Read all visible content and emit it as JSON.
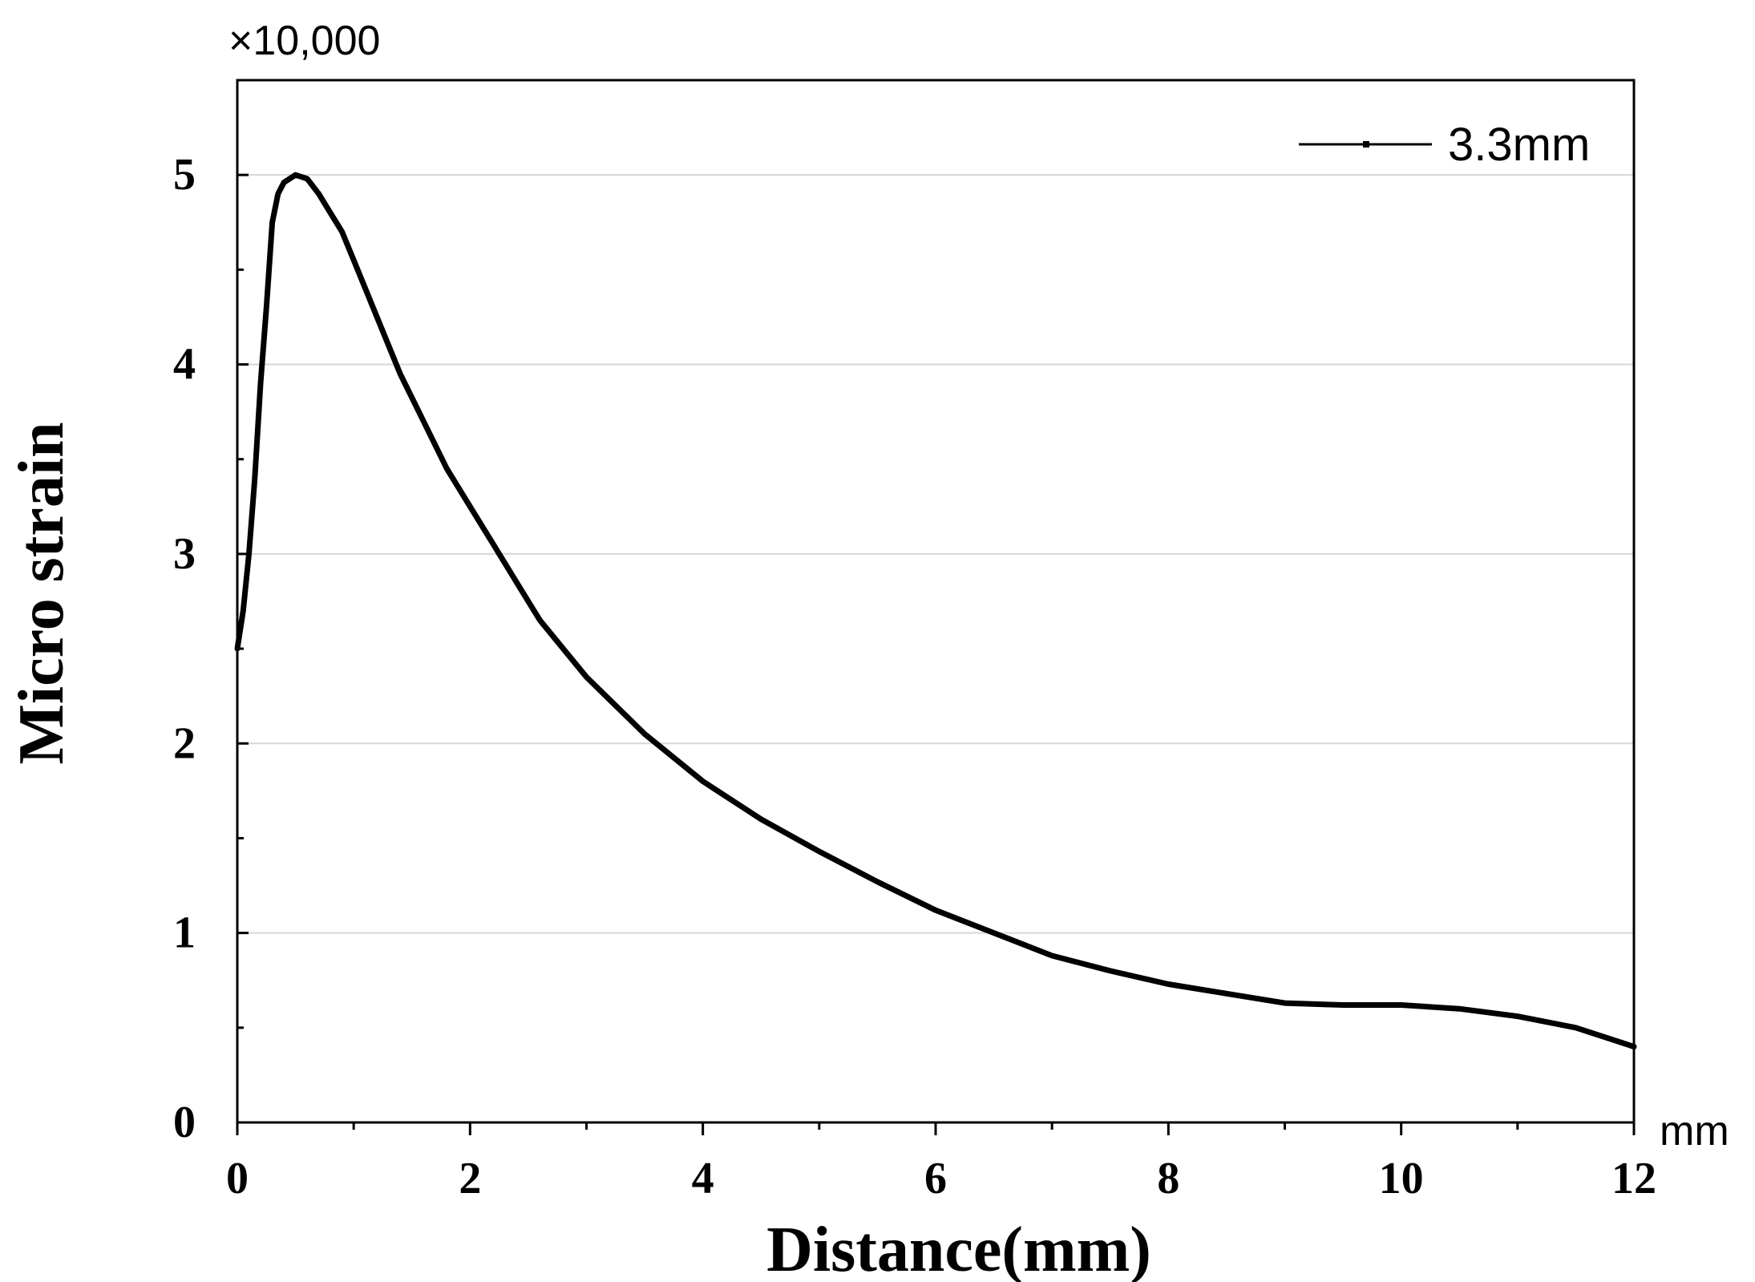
{
  "chart_data": {
    "type": "line",
    "xlabel": "Distance(mm)",
    "ylabel": "Micro strain",
    "y_multiplier_label": "×10,000",
    "x_unit_label": "mm",
    "xlim": [
      0,
      12
    ],
    "ylim": [
      0,
      5.5
    ],
    "x_ticks": [
      "0",
      "2",
      "4",
      "6",
      "8",
      "10",
      "12"
    ],
    "y_ticks": [
      "0",
      "1",
      "2",
      "3",
      "4",
      "5"
    ],
    "grid": "horizontal",
    "legend": "top-right",
    "series": [
      {
        "name": "3.3mm",
        "color": "#000000",
        "x": [
          0,
          0.05,
          0.1,
          0.15,
          0.2,
          0.25,
          0.3,
          0.35,
          0.4,
          0.5,
          0.6,
          0.7,
          0.8,
          0.9,
          1.0,
          1.2,
          1.4,
          1.6,
          1.8,
          2.0,
          2.2,
          2.4,
          2.6,
          3.0,
          3.5,
          4.0,
          4.5,
          5.0,
          5.5,
          6.0,
          6.5,
          7.0,
          7.5,
          8.0,
          8.5,
          9.0,
          9.5,
          10.0,
          10.5,
          11.0,
          11.5,
          12.0
        ],
        "y": [
          2.5,
          2.7,
          3.0,
          3.4,
          3.9,
          4.3,
          4.75,
          4.9,
          4.96,
          5.0,
          4.98,
          4.9,
          4.8,
          4.7,
          4.55,
          4.25,
          3.95,
          3.7,
          3.45,
          3.25,
          3.05,
          2.85,
          2.65,
          2.35,
          2.05,
          1.8,
          1.6,
          1.43,
          1.27,
          1.12,
          1.0,
          0.88,
          0.8,
          0.73,
          0.68,
          0.63,
          0.62,
          0.62,
          0.6,
          0.56,
          0.5,
          0.4
        ]
      }
    ]
  }
}
